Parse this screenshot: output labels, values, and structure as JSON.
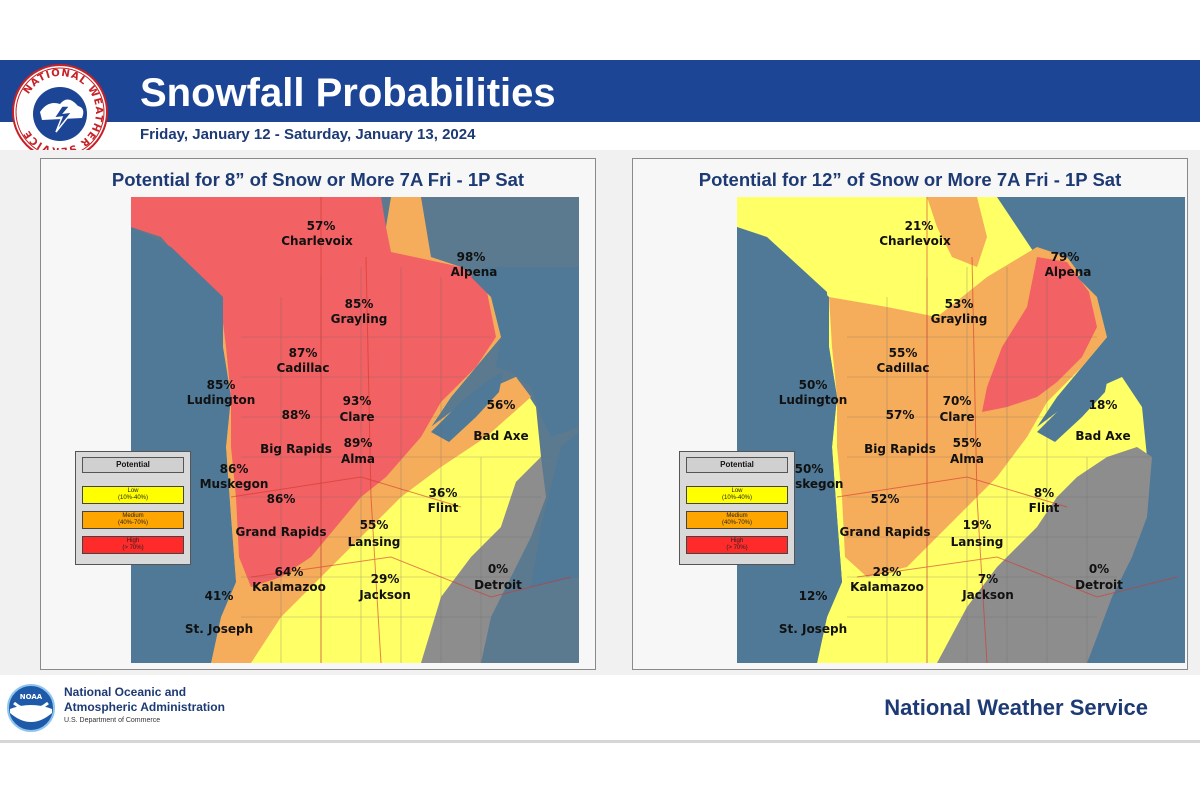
{
  "header": {
    "title": "Snowfall Probabilities",
    "subtitle": "Friday, January 12 - Saturday, January 13, 2024",
    "nws_seal_text": "NATIONAL WEATHER SERVICE"
  },
  "colors": {
    "brand_blue": "#1d4596",
    "title_navy": "#1d3a74",
    "low": "#ffff66",
    "medium": "#f5ad5b",
    "high": "#f26163",
    "none": "#8d8d8d",
    "water": "#4f7996"
  },
  "legend": {
    "title": "Potential",
    "items": [
      {
        "name": "Low",
        "range": "(10%-40%)",
        "color": "#ffff00"
      },
      {
        "name": "Medium",
        "range": "(40%-70%)",
        "color": "#ffa500"
      },
      {
        "name": "High",
        "range": "(> 70%)",
        "color": "#ff2a2a"
      }
    ]
  },
  "maps": [
    {
      "title": "Potential for 8” of Snow or More 7A Fri - 1P Sat",
      "locations": [
        {
          "pct": "57%",
          "name": "Charlevoix"
        },
        {
          "pct": "98%",
          "name": "Alpena"
        },
        {
          "pct": "85%",
          "name": "Grayling"
        },
        {
          "pct": "87%",
          "name": "Cadillac"
        },
        {
          "pct": "85%",
          "name": "Ludington"
        },
        {
          "pct": "88%",
          "name": "Big Rapids"
        },
        {
          "pct": "93%",
          "name": "Clare"
        },
        {
          "pct": "89%",
          "name": "Alma"
        },
        {
          "pct": "56%",
          "name": "Bad Axe"
        },
        {
          "pct": "86%",
          "name": "Muskegon"
        },
        {
          "pct": "86%",
          "name": "Grand Rapids"
        },
        {
          "pct": "36%",
          "name": "Flint"
        },
        {
          "pct": "55%",
          "name": "Lansing"
        },
        {
          "pct": "64%",
          "name": "Kalamazoo"
        },
        {
          "pct": "29%",
          "name": "Jackson"
        },
        {
          "pct": "0%",
          "name": "Detroit"
        },
        {
          "pct": "41%",
          "name": "St. Joseph"
        }
      ]
    },
    {
      "title": "Potential for 12” of Snow or More 7A Fri - 1P Sat",
      "locations": [
        {
          "pct": "21%",
          "name": "Charlevoix"
        },
        {
          "pct": "79%",
          "name": "Alpena"
        },
        {
          "pct": "53%",
          "name": "Grayling"
        },
        {
          "pct": "55%",
          "name": "Cadillac"
        },
        {
          "pct": "50%",
          "name": "Ludington"
        },
        {
          "pct": "57%",
          "name": "Big Rapids"
        },
        {
          "pct": "70%",
          "name": "Clare"
        },
        {
          "pct": "55%",
          "name": "Alma"
        },
        {
          "pct": "18%",
          "name": "Bad Axe"
        },
        {
          "pct": "50%",
          "name": "Muskegon"
        },
        {
          "pct": "52%",
          "name": "Grand Rapids"
        },
        {
          "pct": "8%",
          "name": "Flint"
        },
        {
          "pct": "19%",
          "name": "Lansing"
        },
        {
          "pct": "28%",
          "name": "Kalamazoo"
        },
        {
          "pct": "7%",
          "name": "Jackson"
        },
        {
          "pct": "0%",
          "name": "Detroit"
        },
        {
          "pct": "12%",
          "name": "St. Joseph"
        }
      ]
    }
  ],
  "footer": {
    "noaa_line1": "National Oceanic and",
    "noaa_line2": "Atmospheric Administration",
    "noaa_dept": "U.S. Department of Commerce",
    "noaa_logo_text": "NOAA",
    "nws": "National Weather Service"
  }
}
